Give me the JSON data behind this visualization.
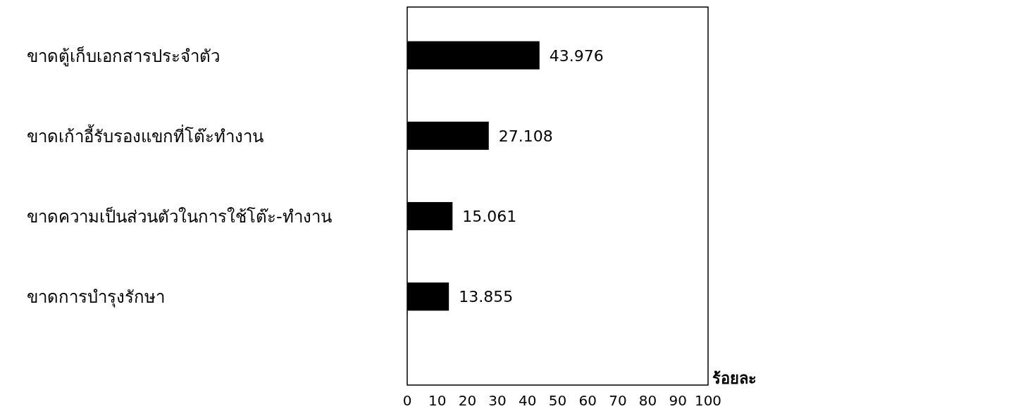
{
  "chart_data": {
    "type": "bar",
    "orientation": "horizontal",
    "categories": [
      "ขาดตู้เก็บเอกสารประจำตัว",
      "ขาดเก้าอี้รับรองแขกที่โต๊ะทำงาน",
      "ขาดความเป็นส่วนตัวในการใช้โต๊ะ-ทำงาน",
      "ขาดการบำรุงรักษา"
    ],
    "values": [
      43.976,
      27.108,
      15.061,
      13.855
    ],
    "color": "#000000",
    "data_labels": true,
    "xlabel": "ร้อยละ",
    "xlim": [
      0,
      100
    ],
    "xticks": [
      0,
      10,
      20,
      30,
      40,
      50,
      60,
      70,
      80,
      90,
      100
    ]
  }
}
